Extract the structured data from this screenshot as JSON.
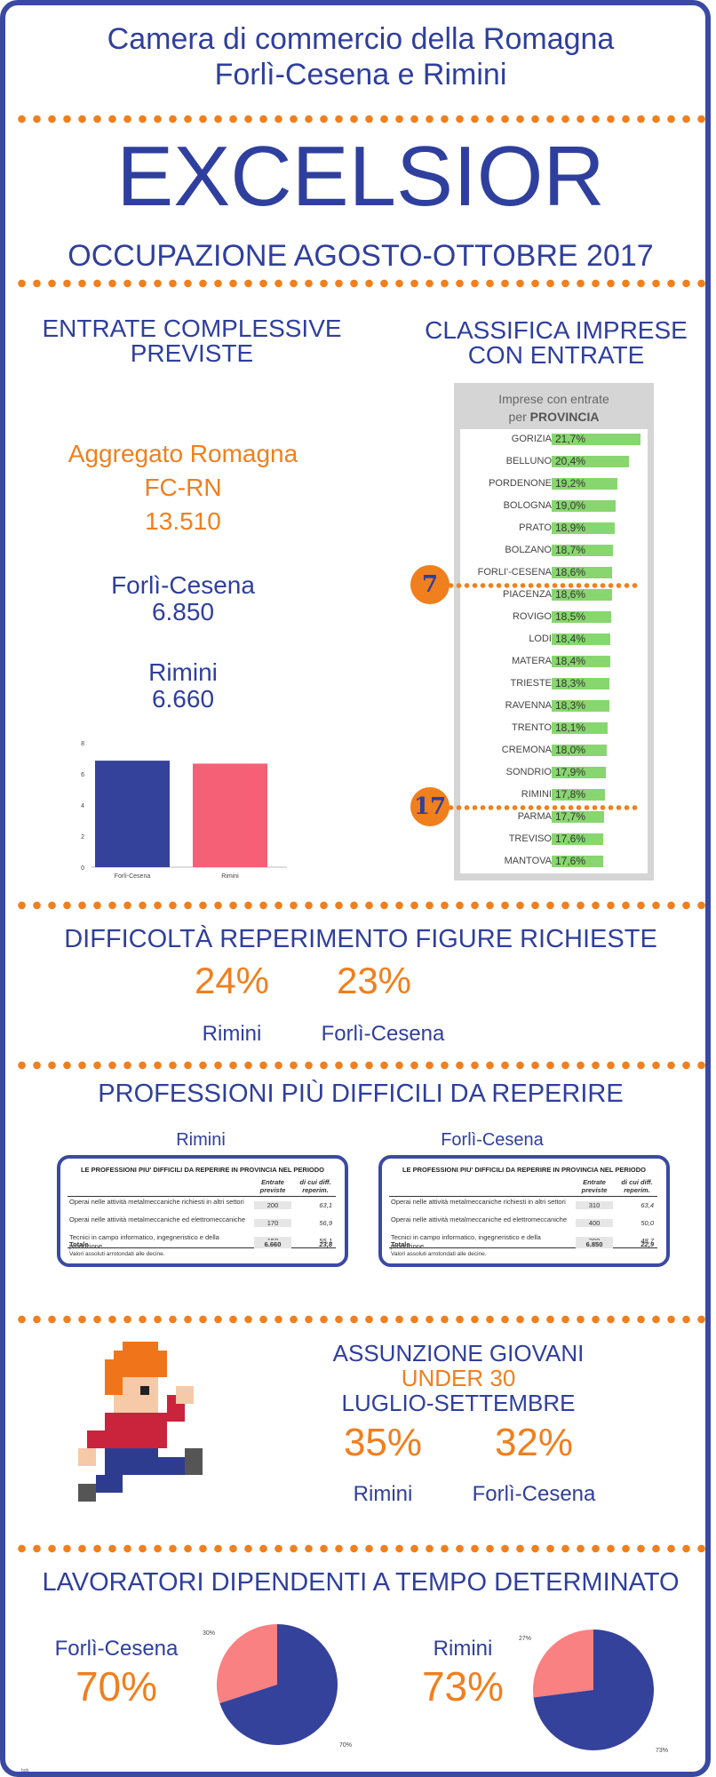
{
  "header": {
    "line1": "Camera di commercio della Romagna",
    "line2": "Forlì-Cesena e Rimini",
    "title": "EXCELSIOR",
    "subtitle": "OCCUPAZIONE AGOSTO-OTTOBRE 2017"
  },
  "entrate": {
    "heading": "ENTRATE COMPLESSIVE PREVISTE",
    "aggregate_label1": "Aggregato Romagna",
    "aggregate_label2": "FC-RN",
    "aggregate_value": "13.510",
    "fc_label": "Forlì-Cesena",
    "fc_value": "6.850",
    "rn_label": "Rimini",
    "rn_value": "6.660"
  },
  "chart_data": {
    "type": "bar",
    "categories": [
      "Forlì-Cesena",
      "Rimini"
    ],
    "values": [
      6.85,
      6.66
    ],
    "ylim": [
      0,
      8
    ],
    "yticks": [
      "0",
      "2",
      "4",
      "6",
      "8"
    ],
    "colors": [
      "#35429b",
      "#f66077"
    ],
    "grid": false
  },
  "classifica": {
    "heading1": "CLASSIFICA IMPRESE",
    "heading2": "CON ENTRATE",
    "box_title1": "Imprese con entrate",
    "box_title2_prefix": "per",
    "box_title2_bold": "PROVINCIA",
    "bar_color": "#88d66f",
    "rows": [
      {
        "name": "GORIZIA",
        "value": "21,7%",
        "pct": 21.7
      },
      {
        "name": "BELLUNO",
        "value": "20,4%",
        "pct": 20.4
      },
      {
        "name": "PORDENONE",
        "value": "19,2%",
        "pct": 19.2
      },
      {
        "name": "BOLOGNA",
        "value": "19,0%",
        "pct": 19.0
      },
      {
        "name": "PRATO",
        "value": "18,9%",
        "pct": 18.9
      },
      {
        "name": "BOLZANO",
        "value": "18,7%",
        "pct": 18.7
      },
      {
        "name": "FORLI'-CESENA",
        "value": "18,6%",
        "pct": 18.6
      },
      {
        "name": "PIACENZA",
        "value": "18,6%",
        "pct": 18.6
      },
      {
        "name": "ROVIGO",
        "value": "18,5%",
        "pct": 18.5
      },
      {
        "name": "LODI",
        "value": "18,4%",
        "pct": 18.4
      },
      {
        "name": "MATERA",
        "value": "18,4%",
        "pct": 18.4
      },
      {
        "name": "TRIESTE",
        "value": "18,3%",
        "pct": 18.3
      },
      {
        "name": "RAVENNA",
        "value": "18,3%",
        "pct": 18.3
      },
      {
        "name": "TRENTO",
        "value": "18,1%",
        "pct": 18.1
      },
      {
        "name": "CREMONA",
        "value": "18,0%",
        "pct": 18.0
      },
      {
        "name": "SONDRIO",
        "value": "17,9%",
        "pct": 17.9
      },
      {
        "name": "RIMINI",
        "value": "17,8%",
        "pct": 17.8
      },
      {
        "name": "PARMA",
        "value": "17,7%",
        "pct": 17.7
      },
      {
        "name": "TREVISO",
        "value": "17,6%",
        "pct": 17.6
      },
      {
        "name": "MANTOVA",
        "value": "17,6%",
        "pct": 17.6
      }
    ],
    "badge_fc": "7",
    "badge_rn": "17"
  },
  "difficolta": {
    "heading": "DIFFICOLTÀ REPERIMENTO FIGURE RICHIESTE",
    "rn_value": "24%",
    "fc_value": "23%",
    "rn_label": "Rimini",
    "fc_label": "Forlì-Cesena"
  },
  "professioni": {
    "heading": "PROFESSIONI PIÙ DIFFICILI DA REPERIRE",
    "rn_label": "Rimini",
    "fc_label": "Forlì-Cesena",
    "table_title": "LE PROFESSIONI PIU' DIFFICILI DA REPERIRE IN PROVINCIA NEL PERIODO",
    "col1": "Entrate previste",
    "col2": "di cui diff. reperim.",
    "total_label": "Totale",
    "note": "Valori assoluti arrotondati alle decine.",
    "row_labels": [
      "Operai nelle attività metalmeccaniche richiesti in altri settori",
      "Operai nelle attività metalmeccaniche ed elettromeccaniche",
      "Tecnici in campo informatico, ingegneristico e della produzione"
    ],
    "rimini": {
      "rows": [
        [
          "200",
          "63,1"
        ],
        [
          "170",
          "56,9"
        ],
        [
          "150",
          "55,1"
        ]
      ],
      "total": [
        "6.660",
        "23,8"
      ]
    },
    "fc": {
      "rows": [
        [
          "310",
          "63,4"
        ],
        [
          "400",
          "50,0"
        ],
        [
          "200",
          "48,7"
        ]
      ],
      "total": [
        "6.850",
        "22,9"
      ]
    }
  },
  "giovani": {
    "line1": "ASSUNZIONE GIOVANI",
    "line2": "UNDER 30",
    "line3": "LUGLIO-SETTEMBRE",
    "rn_value": "35%",
    "fc_value": "32%",
    "rn_label": "Rimini",
    "fc_label": "Forlì-Cesena"
  },
  "determinato": {
    "heading": "LAVORATORI DIPENDENTI A TEMPO DETERMINATO",
    "fc_label": "Forlì-Cesena",
    "fc_value": "70%",
    "rn_label": "Rimini",
    "rn_value": "73%",
    "pie_colors": [
      "#35429b",
      "#f98181"
    ],
    "fc_pie": {
      "main": 70,
      "rest": 30,
      "main_label": "70%",
      "rest_label": "30%"
    },
    "rn_pie": {
      "main": 73,
      "rest": 27,
      "main_label": "73%",
      "rest_label": "27%"
    }
  },
  "footer": {
    "tiny": "bob"
  }
}
